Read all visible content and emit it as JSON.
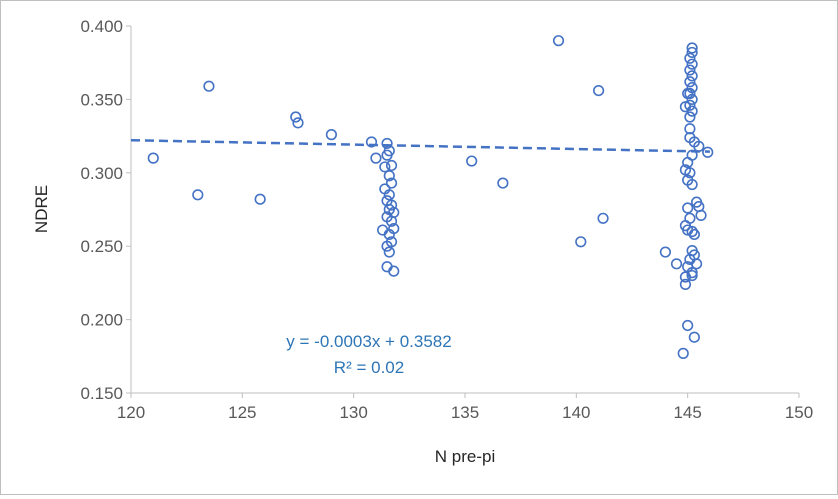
{
  "chart_data": {
    "type": "scatter",
    "title": "",
    "xlabel": "N pre-pi",
    "ylabel": "NDRE",
    "xlim": [
      120,
      150
    ],
    "ylim": [
      0.15,
      0.4
    ],
    "x_ticks": [
      "120",
      "125",
      "130",
      "135",
      "140",
      "145",
      "150"
    ],
    "y_ticks": [
      "0.150",
      "0.200",
      "0.250",
      "0.300",
      "0.350",
      "0.400"
    ],
    "grid": false,
    "legend": "none",
    "marker_color": "#4472C4",
    "trendline": {
      "type": "linear",
      "style": "dashed",
      "color": "#4472C4",
      "slope": -0.0003,
      "intercept": 0.3582,
      "x_range": [
        120,
        146
      ],
      "equation_label": "y = -0.0003x + 0.3582",
      "r2_label": "R² = 0.02",
      "label_color": "#2E75B6"
    },
    "series": [
      {
        "name": "NDRE vs N pre-pi",
        "points": [
          [
            121.0,
            0.31
          ],
          [
            123.0,
            0.285
          ],
          [
            123.5,
            0.359
          ],
          [
            125.8,
            0.282
          ],
          [
            127.4,
            0.338
          ],
          [
            127.5,
            0.334
          ],
          [
            129.0,
            0.326
          ],
          [
            130.8,
            0.321
          ],
          [
            131.0,
            0.31
          ],
          [
            131.5,
            0.32
          ],
          [
            131.6,
            0.315
          ],
          [
            131.5,
            0.312
          ],
          [
            131.7,
            0.305
          ],
          [
            131.4,
            0.304
          ],
          [
            131.6,
            0.298
          ],
          [
            131.7,
            0.293
          ],
          [
            131.4,
            0.289
          ],
          [
            131.6,
            0.285
          ],
          [
            131.5,
            0.281
          ],
          [
            131.7,
            0.278
          ],
          [
            131.6,
            0.275
          ],
          [
            131.8,
            0.273
          ],
          [
            131.5,
            0.27
          ],
          [
            131.7,
            0.267
          ],
          [
            131.8,
            0.262
          ],
          [
            131.3,
            0.261
          ],
          [
            131.6,
            0.258
          ],
          [
            131.7,
            0.253
          ],
          [
            131.5,
            0.25
          ],
          [
            131.6,
            0.246
          ],
          [
            131.5,
            0.236
          ],
          [
            131.8,
            0.233
          ],
          [
            135.3,
            0.308
          ],
          [
            136.7,
            0.293
          ],
          [
            139.2,
            0.39
          ],
          [
            140.2,
            0.253
          ],
          [
            141.0,
            0.356
          ],
          [
            141.2,
            0.269
          ],
          [
            144.0,
            0.246
          ],
          [
            144.5,
            0.238
          ],
          [
            145.2,
            0.385
          ],
          [
            145.2,
            0.382
          ],
          [
            145.1,
            0.378
          ],
          [
            145.2,
            0.374
          ],
          [
            145.1,
            0.37
          ],
          [
            145.2,
            0.366
          ],
          [
            145.1,
            0.362
          ],
          [
            145.2,
            0.358
          ],
          [
            145.1,
            0.354
          ],
          [
            145.0,
            0.354
          ],
          [
            145.2,
            0.35
          ],
          [
            145.1,
            0.346
          ],
          [
            144.9,
            0.345
          ],
          [
            145.2,
            0.342
          ],
          [
            145.1,
            0.338
          ],
          [
            145.1,
            0.33
          ],
          [
            145.1,
            0.324
          ],
          [
            145.3,
            0.321
          ],
          [
            145.5,
            0.318
          ],
          [
            145.2,
            0.312
          ],
          [
            145.9,
            0.314
          ],
          [
            145.0,
            0.307
          ],
          [
            144.9,
            0.302
          ],
          [
            145.1,
            0.3
          ],
          [
            145.0,
            0.295
          ],
          [
            145.2,
            0.292
          ],
          [
            145.4,
            0.28
          ],
          [
            145.5,
            0.277
          ],
          [
            145.0,
            0.276
          ],
          [
            145.6,
            0.271
          ],
          [
            145.1,
            0.269
          ],
          [
            144.9,
            0.264
          ],
          [
            145.0,
            0.261
          ],
          [
            145.2,
            0.26
          ],
          [
            145.3,
            0.258
          ],
          [
            145.2,
            0.247
          ],
          [
            145.3,
            0.244
          ],
          [
            145.1,
            0.241
          ],
          [
            145.4,
            0.238
          ],
          [
            145.0,
            0.236
          ],
          [
            145.2,
            0.232
          ],
          [
            144.9,
            0.229
          ],
          [
            145.2,
            0.23
          ],
          [
            144.9,
            0.224
          ],
          [
            145.0,
            0.196
          ],
          [
            145.3,
            0.188
          ],
          [
            144.8,
            0.177
          ]
        ]
      }
    ]
  }
}
